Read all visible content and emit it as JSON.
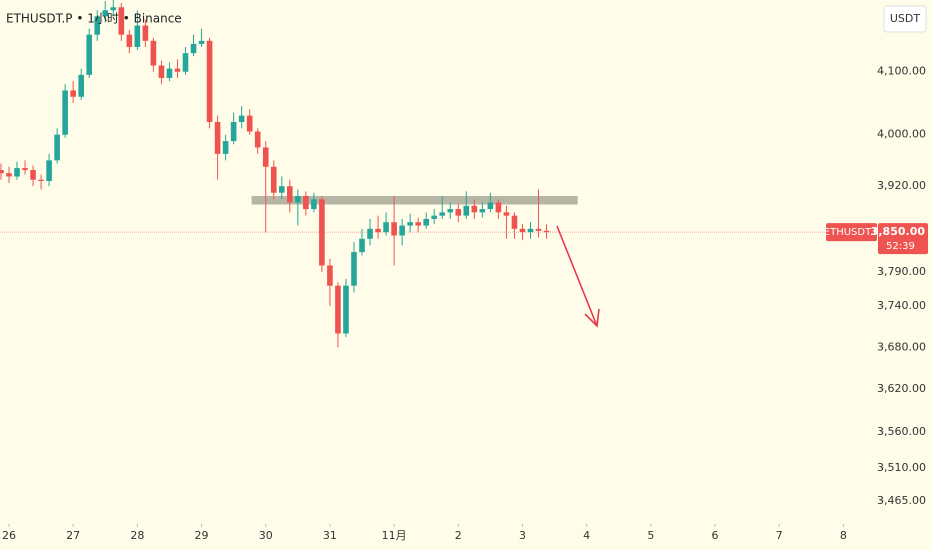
{
  "chart_data": {
    "type": "candlestick",
    "title": "ETHUSDT.P • 1小时 • Binance",
    "currency_label": "USDT",
    "log_scale": true,
    "up_color": "#26a69a",
    "down_color": "#ef5350",
    "xlim": [
      25.86,
      39.57
    ],
    "xticks": [
      26,
      27,
      28,
      29,
      30,
      31,
      {
        "value": 32,
        "label": "11月"
      },
      {
        "value": 33,
        "label": "2"
      },
      {
        "value": 34,
        "label": "3"
      },
      {
        "value": 35,
        "label": "4"
      },
      {
        "value": 36,
        "label": "5"
      },
      {
        "value": 37,
        "label": "6"
      },
      {
        "value": 38,
        "label": "7"
      },
      {
        "value": 39,
        "label": "8"
      }
    ],
    "ylim": [
      3439,
      4217
    ],
    "yticks": [
      {
        "value": 4100,
        "label": "4,100.00"
      },
      {
        "value": 4000,
        "label": "4,000.00"
      },
      {
        "value": 3920,
        "label": "3,920.00"
      },
      {
        "value": 3790,
        "label": "3,790.00"
      },
      {
        "value": 3740,
        "label": "3,740.00"
      },
      {
        "value": 3680,
        "label": "3,680.00"
      },
      {
        "value": 3620,
        "label": "3,620.00"
      },
      {
        "value": 3560,
        "label": "3,560.00"
      },
      {
        "value": 3510,
        "label": "3,510.00"
      },
      {
        "value": 3465,
        "label": "3,465.00"
      }
    ],
    "x": [
      25.875,
      26,
      26.125,
      26.25,
      26.375,
      26.5,
      26.625,
      26.75,
      26.875,
      27,
      27.125,
      27.25,
      27.375,
      27.5,
      27.625,
      27.75,
      27.875,
      28,
      28.125,
      28.25,
      28.375,
      28.5,
      28.625,
      28.75,
      28.875,
      29,
      29.125,
      29.25,
      29.375,
      29.5,
      29.625,
      29.75,
      29.875,
      30,
      30.125,
      30.25,
      30.375,
      30.5,
      30.625,
      30.75,
      30.875,
      31,
      31.125,
      31.25,
      31.375,
      31.5,
      31.625,
      31.75,
      31.875,
      32,
      32.125,
      32.25,
      32.375,
      32.5,
      32.625,
      32.75,
      32.875,
      33,
      33.125,
      33.25,
      33.375,
      33.5,
      33.625,
      33.75,
      33.875,
      34,
      34.125,
      34.25,
      34.375
    ],
    "open": [
      3945,
      3940,
      3935,
      3948,
      3945,
      3930,
      3928,
      3960,
      4000,
      4070,
      4060,
      4095,
      4160,
      4190,
      4200,
      4205,
      4160,
      4140,
      4175,
      4150,
      4110,
      4090,
      4105,
      4100,
      4130,
      4145,
      4150,
      4020,
      3970,
      3990,
      4020,
      4030,
      4005,
      3980,
      3950,
      3910,
      3920,
      3895,
      3905,
      3885,
      3900,
      3800,
      3770,
      3700,
      3770,
      3820,
      3840,
      3855,
      3850,
      3865,
      3845,
      3860,
      3865,
      3860,
      3870,
      3875,
      3880,
      3885,
      3875,
      3890,
      3880,
      3885,
      3895,
      3880,
      3875,
      3855,
      3850,
      3855,
      3852
    ],
    "high": [
      3955,
      3950,
      3958,
      3960,
      3952,
      3938,
      3970,
      4010,
      4080,
      4085,
      4105,
      4170,
      4200,
      4215,
      4225,
      4212,
      4168,
      4200,
      4185,
      4155,
      4118,
      4115,
      4120,
      4140,
      4160,
      4170,
      4155,
      4030,
      4000,
      4035,
      4045,
      4040,
      4010,
      3990,
      3960,
      3935,
      3930,
      3915,
      3912,
      3910,
      3905,
      3810,
      3775,
      3780,
      3835,
      3855,
      3870,
      3875,
      3880,
      3905,
      3870,
      3878,
      3872,
      3880,
      3885,
      3905,
      3895,
      3893,
      3912,
      3900,
      3895,
      3910,
      3900,
      3890,
      3880,
      3862,
      3865,
      3915,
      3862
    ],
    "low": [
      3930,
      3925,
      3930,
      3938,
      3920,
      3915,
      3920,
      3955,
      3995,
      4050,
      4055,
      4090,
      4150,
      4180,
      4190,
      4150,
      4130,
      4135,
      4140,
      4100,
      4080,
      4085,
      4090,
      4095,
      4125,
      4140,
      4010,
      3930,
      3960,
      3985,
      4010,
      4000,
      3970,
      3850,
      3900,
      3900,
      3880,
      3860,
      3875,
      3880,
      3790,
      3740,
      3680,
      3695,
      3760,
      3815,
      3830,
      3840,
      3845,
      3800,
      3830,
      3850,
      3850,
      3855,
      3862,
      3870,
      3870,
      3865,
      3870,
      3870,
      3872,
      3880,
      3870,
      3840,
      3840,
      3838,
      3840,
      3842,
      3840
    ],
    "close": [
      3940,
      3935,
      3948,
      3945,
      3930,
      3928,
      3960,
      4000,
      4070,
      4060,
      4095,
      4160,
      4190,
      4200,
      4205,
      4160,
      4140,
      4175,
      4150,
      4110,
      4090,
      4105,
      4100,
      4130,
      4145,
      4150,
      4020,
      3970,
      3990,
      4020,
      4030,
      4005,
      3980,
      3950,
      3910,
      3920,
      3895,
      3905,
      3885,
      3900,
      3800,
      3770,
      3700,
      3770,
      3820,
      3840,
      3855,
      3850,
      3865,
      3845,
      3860,
      3865,
      3860,
      3870,
      3875,
      3880,
      3885,
      3875,
      3890,
      3880,
      3885,
      3895,
      3880,
      3875,
      3855,
      3850,
      3855,
      3852,
      3850
    ],
    "resistance_zone": {
      "low": 3892,
      "high": 3905,
      "start": 29.78,
      "end": 34.86,
      "color": "#9e9e8e"
    },
    "symbol_label": "ETHUSDT.P",
    "last_price": {
      "value": 3850,
      "label": "3,850.00"
    },
    "countdown": "52:39"
  }
}
